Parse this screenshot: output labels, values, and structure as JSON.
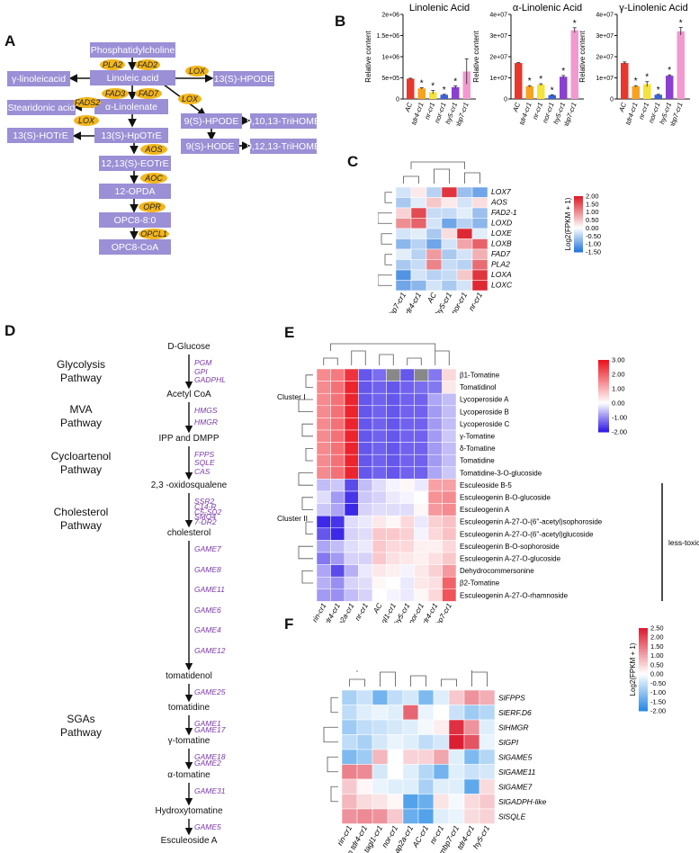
{
  "panels": {
    "a": "A",
    "b": "B",
    "c": "C",
    "d": "D",
    "e": "E",
    "f": "F"
  },
  "panelA": {
    "boxes": [
      "Phosphatidylcholine",
      "Linoleic acid",
      "γ-linoleicacid",
      "13(S)-HPODE",
      "α-Linolenate",
      "Stearidonic acid",
      "9(S)-HPODE",
      "9,10,13-TriHOME",
      "13(S)-HOTrE",
      "13(S)-HpOTrE",
      "9(S)-HODE",
      "9,12,13-TriHOME",
      "12,13(S)-EOTrE",
      "12-OPDA",
      "OPC8-8:0",
      "OPC8-CoA"
    ],
    "enzymes": [
      "PLA2",
      "FAD2",
      "LOX",
      "FAD3",
      "FAD7",
      "LOX",
      "FADS2",
      "LOX",
      "AOS",
      "AOC",
      "OPR",
      "OPCL1"
    ]
  },
  "panelB": {
    "ylabel": "Relative content",
    "categories": [
      "AC",
      "tdr4-cr1",
      "nr-cr1",
      "nor-cr1",
      "hy5-cr1",
      "mbp7-cr1"
    ],
    "star": "*"
  },
  "chart_data": [
    {
      "type": "bar",
      "title": "Linolenic Acid",
      "ylabel": "Relative content",
      "categories": [
        "AC",
        "tdr4-cr1",
        "nr-cr1",
        "nor-cr1",
        "hy5-cr1",
        "mbp7-cr1"
      ],
      "values": [
        480000,
        250000,
        160000,
        100000,
        280000,
        650000
      ],
      "errors": [
        10000,
        15000,
        40000,
        10000,
        30000,
        300000
      ],
      "significant": [
        false,
        true,
        true,
        true,
        true,
        false
      ],
      "ylim": [
        0,
        2000000
      ],
      "yticks": [
        "0",
        "5e+05",
        "1e+06",
        "1.5e+06",
        "2e+06"
      ]
    },
    {
      "type": "bar",
      "title": "α-Linolenic Acid",
      "ylabel": "Relative content",
      "categories": [
        "AC",
        "tdr4-cr1",
        "nr-cr1",
        "nor-cr1",
        "hy5-cr1",
        "mbp7-cr1"
      ],
      "values": [
        17000000,
        6000000,
        6800000,
        1800000,
        10500000,
        32500000
      ],
      "errors": [
        200000,
        300000,
        400000,
        200000,
        600000,
        1200000
      ],
      "significant": [
        false,
        true,
        true,
        true,
        true,
        true
      ],
      "ylim": [
        0,
        40000000
      ],
      "yticks": [
        "0",
        "1e+07",
        "2e+07",
        "3e+07",
        "4e+07"
      ]
    },
    {
      "type": "bar",
      "title": "γ-Linolenic Acid",
      "ylabel": "Relative content",
      "categories": [
        "AC",
        "tdr4-cr1",
        "nr-cr1",
        "nor-cr1",
        "hy5-cr1",
        "mbp7-cr1"
      ],
      "values": [
        17000000,
        6000000,
        7000000,
        2000000,
        11000000,
        32000000
      ],
      "errors": [
        500000,
        300000,
        1200000,
        200000,
        400000,
        1800000
      ],
      "significant": [
        false,
        true,
        true,
        true,
        true,
        true
      ],
      "ylim": [
        0,
        40000000
      ],
      "yticks": [
        "0",
        "1e+07",
        "2e+07",
        "3e+07",
        "4e+07"
      ]
    },
    {
      "type": "heatmap",
      "panel": "C",
      "rows": [
        "LOX7",
        "AOS",
        "FAD2-1",
        "LOXD",
        "LOXE",
        "LOXB",
        "FAD7",
        "PLA2",
        "LOXA",
        "LOXC"
      ],
      "cols": [
        "mbp7-cr1",
        "tdr4-cr1",
        "AC",
        "hy5-cr1",
        "nor-cr1",
        "nr-cr1"
      ],
      "values": [
        [
          -0.3,
          0.2,
          -0.5,
          1.8,
          -0.7,
          -1.0
        ],
        [
          -0.6,
          -0.2,
          0.5,
          0.2,
          -0.3,
          0.3
        ],
        [
          0.4,
          1.6,
          -0.4,
          -0.4,
          -0.2,
          -0.7
        ],
        [
          1.0,
          1.4,
          -0.3,
          -1.0,
          -0.5,
          -0.8
        ],
        [
          -0.3,
          -0.2,
          -0.6,
          0.3,
          1.9,
          -0.2
        ],
        [
          -0.8,
          -0.5,
          -1.0,
          -0.3,
          0.8,
          1.4
        ],
        [
          -0.2,
          -0.5,
          0.9,
          -0.6,
          -0.3,
          0.7
        ],
        [
          -0.6,
          -0.4,
          1.1,
          -0.4,
          -0.5,
          1.3
        ],
        [
          -1.2,
          -0.3,
          -0.5,
          -0.4,
          0.5,
          1.8
        ],
        [
          -1.0,
          -0.8,
          -0.3,
          -0.6,
          -0.3,
          1.9
        ]
      ],
      "legend_title": "Log2(FPKM + 1)",
      "legend_ticks": [
        "2.00",
        "1.50",
        "1.00",
        "0.50",
        "0.00",
        "-0.50",
        "-1.00",
        "-1.50"
      ],
      "range": [
        -1.5,
        2.0
      ]
    },
    {
      "type": "heatmap",
      "panel": "E",
      "rows": [
        "β1-Tomatine",
        "Tomatidinol",
        "Lycoperoside A",
        "Lycoperoside B",
        "Lycoperoside C",
        "γ-Tomatine",
        "δ-Tomatine",
        "Tomatidine",
        "Tomatidine-3-O-glucoside",
        "Esculeoside B-5",
        "Esculeogenin B-O-glucoside",
        "Esculeogenin A",
        "Esculeogenin A-27-O-(6''-acetyl)sophoroside",
        "Esculeogenin A-27-O-(6''-acetyl)glucoside",
        "Esculeogenin B-O-sophoroside",
        "Esculeogenin A-27-O-glucoside",
        "Dehydrocommersonine",
        "β2-Tomatine",
        "Esculeogenin A-27-O-rhamnoside"
      ],
      "cols": [
        "rin-cr1",
        "rin tdr4-cr1",
        "ap2a-cr1",
        "nr-cr1",
        "AC",
        "tagl1-cr1",
        "hy5-cr1",
        "nor-cr1",
        "tdr4-cr1",
        "mbp7-cr1"
      ],
      "values": [
        [
          1.5,
          1.7,
          2.6,
          -1.5,
          -1.3,
          null,
          -1.5,
          null,
          -1.2,
          0.5
        ],
        [
          1.5,
          1.8,
          2.8,
          -1.5,
          -1.4,
          -1.5,
          -1.4,
          -1.3,
          -1.2,
          0.3
        ],
        [
          1.5,
          1.8,
          2.8,
          -1.5,
          -1.4,
          -1.5,
          -1.4,
          -1.4,
          -0.8,
          -0.6
        ],
        [
          1.5,
          1.8,
          2.8,
          -1.5,
          -1.4,
          -1.5,
          -1.4,
          -1.4,
          -0.9,
          -0.6
        ],
        [
          1.5,
          1.8,
          2.8,
          -1.5,
          -1.4,
          -1.5,
          -1.4,
          -1.4,
          -0.9,
          -0.6
        ],
        [
          1.5,
          1.8,
          2.8,
          -1.5,
          -1.4,
          -1.5,
          -1.4,
          -1.4,
          -0.9,
          -0.5
        ],
        [
          1.5,
          1.8,
          2.8,
          -1.5,
          -1.4,
          -1.5,
          -1.4,
          -1.4,
          -0.9,
          -0.6
        ],
        [
          1.5,
          1.8,
          2.8,
          -1.5,
          -1.4,
          -1.5,
          -1.4,
          -1.4,
          -0.9,
          -0.6
        ],
        [
          1.5,
          1.8,
          2.8,
          -1.5,
          -1.4,
          -1.5,
          -1.4,
          -1.4,
          -0.8,
          -0.5
        ],
        [
          -0.6,
          -0.5,
          -1.6,
          -0.6,
          -0.3,
          -0.1,
          0.1,
          -0.2,
          1.2,
          1.2
        ],
        [
          -0.3,
          -0.9,
          -1.8,
          -0.5,
          -0.4,
          -0.2,
          -0.1,
          0.0,
          1.4,
          1.5
        ],
        [
          -0.5,
          -0.8,
          -1.9,
          -0.4,
          -0.3,
          -0.3,
          -0.3,
          0.1,
          1.3,
          1.5
        ],
        [
          -1.9,
          -1.8,
          -0.3,
          -0.2,
          0.3,
          0.1,
          0.5,
          -0.2,
          0.6,
          0.8
        ],
        [
          -1.5,
          -1.9,
          -0.4,
          -0.3,
          0.7,
          0.7,
          0.6,
          -0.1,
          0.5,
          0.8
        ],
        [
          -0.8,
          -0.6,
          -0.3,
          -0.2,
          0.7,
          0.5,
          0.5,
          0.2,
          0.2,
          0.5
        ],
        [
          -1.2,
          -0.9,
          -0.4,
          -0.4,
          0.7,
          0.4,
          0.3,
          0.2,
          0.4,
          0.7
        ],
        [
          -0.8,
          -1.6,
          -0.7,
          -0.2,
          0.3,
          0.2,
          -0.1,
          0.3,
          0.6,
          1.3
        ],
        [
          -0.7,
          -1.0,
          -0.4,
          -0.3,
          0.1,
          0.0,
          -0.2,
          0.3,
          0.4,
          2.0
        ],
        [
          -0.9,
          -1.0,
          -0.6,
          -0.4,
          0.0,
          -0.1,
          -0.2,
          0.1,
          0.5,
          2.2
        ]
      ],
      "cluster_labels": [
        "Cluster I",
        "Cluster II"
      ],
      "annotation": "less-toxic",
      "legend_ticks": [
        "3.00",
        "2.00",
        "1.00",
        "0.00",
        "-1.00",
        "-2.00"
      ],
      "range": [
        -2.0,
        3.0
      ]
    },
    {
      "type": "heatmap",
      "panel": "F",
      "rows": [
        "SlFPPS",
        "SlERF.D6",
        "SlHMGR",
        "SlGPI",
        "SlGAME5",
        "SlGAME11",
        "SlGAME7",
        "SlGADPH-like",
        "SlSQLE"
      ],
      "cols": [
        "rin-cr1",
        "rin tdr4-cr1",
        "tagl1-cr1",
        "nor-cr1",
        "ap2a-cr1",
        "AC-cr1",
        "nr-cr1",
        "mbp7-cr1",
        "tdr4-cr1",
        "hy5-cr1"
      ],
      "values": [
        [
          -0.8,
          -0.5,
          -1.3,
          -0.6,
          -0.4,
          -1.2,
          -0.3,
          0.6,
          1.2,
          0.9
        ],
        [
          -0.6,
          -0.3,
          -0.2,
          -0.3,
          1.7,
          -0.2,
          0.0,
          -0.5,
          -0.9,
          -0.7
        ],
        [
          -0.9,
          -0.6,
          -0.5,
          -0.4,
          -0.3,
          -0.1,
          0.2,
          2.3,
          1.2,
          -0.3
        ],
        [
          -0.6,
          -0.8,
          -0.4,
          -0.2,
          -0.3,
          -0.6,
          -0.4,
          2.5,
          1.9,
          -0.2
        ],
        [
          -1.2,
          -0.9,
          0.8,
          0.0,
          0.5,
          0.5,
          1.0,
          -0.3,
          -1.2,
          -0.7
        ],
        [
          1.4,
          1.3,
          -0.4,
          0.0,
          -0.3,
          -0.7,
          -1.3,
          -0.3,
          -0.5,
          -0.4
        ],
        [
          0.6,
          0.1,
          -0.2,
          -0.3,
          -0.3,
          -0.8,
          -0.3,
          -0.3,
          -1.5,
          0.4
        ],
        [
          0.8,
          0.4,
          0.3,
          0.1,
          -1.6,
          -1.4,
          0.3,
          -0.1,
          0.4,
          0.6
        ],
        [
          1.2,
          1.3,
          1.2,
          0.6,
          -1.4,
          -1.6,
          -0.3,
          -0.2,
          0.4,
          0.5
        ]
      ],
      "legend_title": "Log2(FPKM + 1)",
      "legend_ticks": [
        "2.50",
        "2.00",
        "1.50",
        "1.00",
        "0.50",
        "0.00",
        "-0.50",
        "-1.00",
        "-1.50",
        "-2.00"
      ],
      "range": [
        -2.0,
        2.5
      ]
    }
  ],
  "panelD": {
    "compounds": [
      "D-Glucose",
      "Acetyl CoA",
      "IPP and DMPP",
      "2,3 -oxidosqualene",
      "cholesterol",
      "tomatidenol",
      "tomatidine",
      "γ-tomatine",
      "α-tomatine",
      "Hydroxytomatine",
      "Esculeoside A"
    ],
    "pathways": [
      "Glycolysis\nPathway",
      "MVA\nPathway",
      "Cycloartenol\nPathway",
      "Cholesterol\nPathway",
      "SGAs\nPathway"
    ],
    "gene_groups": [
      [
        "PGM",
        "GPI",
        "GADPHL"
      ],
      [
        "HMGS",
        "HMGR"
      ],
      [
        "FPPS",
        "SQLE",
        "CAS"
      ],
      [
        "SSR2",
        "C14-R",
        "C5-SD2",
        "SMO4",
        "7-DR2"
      ],
      [
        "GAME7",
        "GAME8",
        "GAME11",
        "GAME6",
        "GAME4",
        "GAME12"
      ],
      [
        "GAME25"
      ],
      [
        "GAME1",
        "GAME17"
      ],
      [
        "GAME18",
        "GAME2"
      ],
      [
        "GAME31"
      ],
      [
        "GAME5"
      ]
    ]
  }
}
